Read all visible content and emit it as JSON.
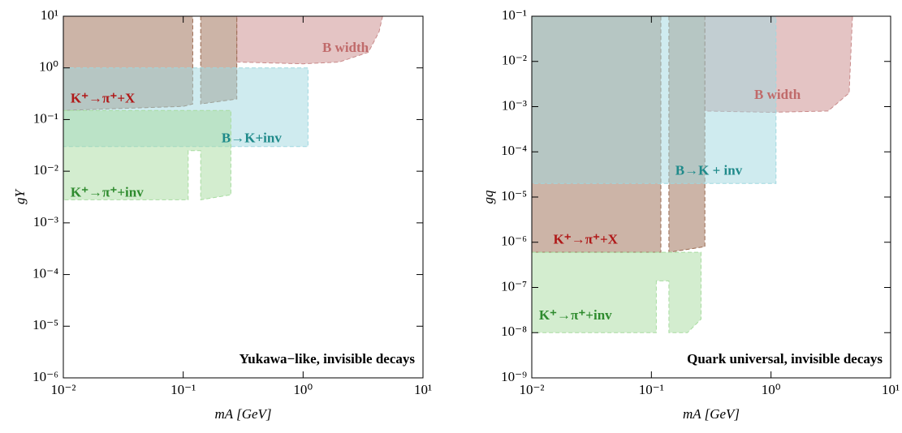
{
  "chart_data": [
    {
      "type": "region",
      "annotation": "Yukawa−like, invisible decays",
      "xlabel": "mA [GeV]",
      "ylabel": "gY",
      "xscale": "log",
      "yscale": "log",
      "xlim": [
        0.01,
        10
      ],
      "ylim": [
        1e-06,
        10
      ],
      "xticks": [
        {
          "value": 0.01,
          "label": "10⁻²"
        },
        {
          "value": 0.1,
          "label": "10⁻¹"
        },
        {
          "value": 1,
          "label": "10⁰"
        },
        {
          "value": 10,
          "label": "10¹"
        }
      ],
      "yticks": [
        {
          "value": 1e-06,
          "label": "10⁻⁶"
        },
        {
          "value": 1e-05,
          "label": "10⁻⁵"
        },
        {
          "value": 0.0001,
          "label": "10⁻⁴"
        },
        {
          "value": 0.001,
          "label": "10⁻³"
        },
        {
          "value": 0.01,
          "label": "10⁻²"
        },
        {
          "value": 0.1,
          "label": "10⁻¹"
        },
        {
          "value": 1,
          "label": "10⁰"
        },
        {
          "value": 10,
          "label": "10¹"
        }
      ],
      "series": [
        {
          "name": "B width",
          "color": "#c98a8a",
          "label_color": "#c06a6a",
          "x": [
            0.28,
            0.28,
            1,
            2,
            3.5,
            4.3,
            4.6
          ],
          "values": [
            10,
            1.3,
            1.2,
            1.3,
            2,
            5,
            10
          ]
        },
        {
          "name": "K⁺→π⁺+X",
          "color": "#9a6a50",
          "label_color": "#b01818",
          "x": [
            0.01,
            0.01,
            0.1,
            0.12,
            0.12,
            null,
            0.14,
            0.14,
            0.28,
            0.28
          ],
          "values": [
            10,
            0.15,
            0.18,
            0.2,
            10,
            null,
            10,
            0.2,
            0.25,
            10
          ]
        },
        {
          "name": "B→K+inv",
          "color": "#9fd8e0",
          "label_color": "#1f8a8a",
          "x": [
            0.01,
            1.1,
            1.1,
            0.01
          ],
          "values": [
            1,
            1,
            0.03,
            0.03
          ]
        },
        {
          "name": "K⁺→π⁺+inv",
          "color": "#a8dca0",
          "label_color": "#2e8b2e",
          "x": [
            0.01,
            0.25,
            0.25,
            0.14,
            0.14,
            0.11,
            0.11,
            0.01
          ],
          "values": [
            0.15,
            0.15,
            0.0035,
            0.0028,
            0.025,
            0.025,
            0.0028,
            0.0028
          ]
        }
      ]
    },
    {
      "type": "region",
      "annotation": "Quark universal, invisible decays",
      "xlabel": "mA [GeV]",
      "ylabel": "gq",
      "xscale": "log",
      "yscale": "log",
      "xlim": [
        0.01,
        10
      ],
      "ylim": [
        1e-09,
        0.1
      ],
      "xticks": [
        {
          "value": 0.01,
          "label": "10⁻²"
        },
        {
          "value": 0.1,
          "label": "10⁻¹"
        },
        {
          "value": 1,
          "label": "10⁰"
        },
        {
          "value": 10,
          "label": "10¹"
        }
      ],
      "yticks": [
        {
          "value": 1e-09,
          "label": "10⁻⁹"
        },
        {
          "value": 1e-08,
          "label": "10⁻⁸"
        },
        {
          "value": 1e-07,
          "label": "10⁻⁷"
        },
        {
          "value": 1e-06,
          "label": "10⁻⁶"
        },
        {
          "value": 1e-05,
          "label": "10⁻⁵"
        },
        {
          "value": 0.0001,
          "label": "10⁻⁴"
        },
        {
          "value": 0.001,
          "label": "10⁻³"
        },
        {
          "value": 0.01,
          "label": "10⁻²"
        },
        {
          "value": 0.1,
          "label": "10⁻¹"
        }
      ],
      "series": [
        {
          "name": "B width",
          "color": "#c98a8a",
          "label_color": "#c06a6a",
          "x": [
            0.28,
            0.28,
            1,
            3,
            4.5,
            4.8
          ],
          "values": [
            0.1,
            0.0008,
            0.00075,
            0.0008,
            0.002,
            0.1
          ]
        },
        {
          "name": "K⁺→π⁺+X",
          "color": "#9a6a50",
          "label_color": "#b01818",
          "x": [
            0.01,
            0.01,
            0.12,
            0.12,
            null,
            0.14,
            0.14,
            0.28,
            0.28
          ],
          "values": [
            0.1,
            6e-07,
            6e-07,
            0.1,
            null,
            0.1,
            6e-07,
            8e-07,
            0.1
          ]
        },
        {
          "name": "B→K + inv",
          "color": "#9fd8e0",
          "label_color": "#1f8a8a",
          "x": [
            0.01,
            1.1,
            1.1,
            0.01
          ],
          "values": [
            0.1,
            0.1,
            2e-05,
            2e-05
          ]
        },
        {
          "name": "K⁺→π⁺+inv",
          "color": "#a8dca0",
          "label_color": "#2e8b2e",
          "x": [
            0.01,
            0.26,
            0.26,
            0.2,
            0.14,
            0.14,
            0.11,
            0.11,
            0.01
          ],
          "values": [
            6e-07,
            6e-07,
            2e-08,
            1e-08,
            1e-08,
            1.4e-07,
            1.4e-07,
            1e-08,
            1e-08
          ]
        }
      ]
    }
  ]
}
